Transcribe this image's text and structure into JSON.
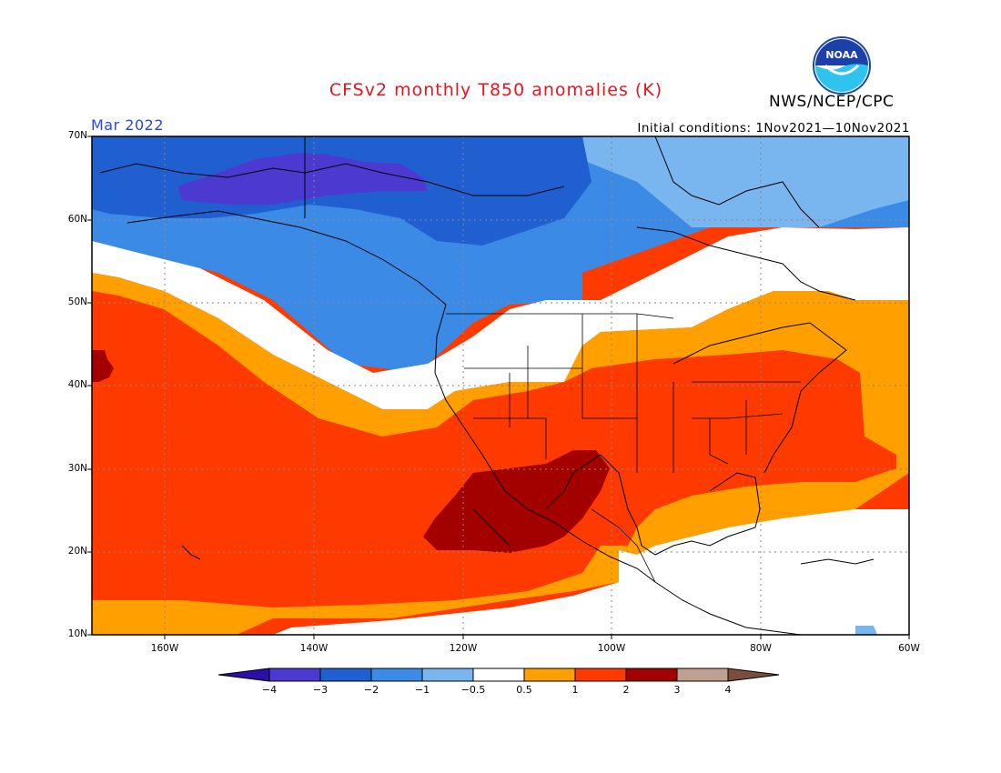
{
  "header": {
    "title": "CFSv2 monthly T850 anomalies (K)",
    "agency": "NWS/NCEP/CPC",
    "valid_month": "Mar 2022",
    "initial_conditions": "Initial conditions: 1Nov2021—10Nov2021",
    "logo_text": "NOAA"
  },
  "map": {
    "lat_labels": [
      "70N",
      "60N",
      "50N",
      "40N",
      "30N",
      "20N",
      "10N"
    ],
    "lon_labels": [
      "160W",
      "140W",
      "120W",
      "100W",
      "80W",
      "60W"
    ]
  },
  "colorbar": {
    "unit": "K",
    "labels": [
      "−4",
      "−3",
      "−2",
      "−1",
      "−0.5",
      "0.5",
      "1",
      "2",
      "3",
      "4"
    ],
    "colors": [
      "#2d0fa6",
      "#4c3ad0",
      "#1f5fd0",
      "#3b8ae6",
      "#79b5ee",
      "#ffffff",
      "#ffa000",
      "#ff3a00",
      "#a30000",
      "#c0a090",
      "#7a4e3c"
    ]
  },
  "anomaly_colors": {
    "neg3": "#4c3ad0",
    "neg2": "#1f5fd0",
    "neg1": "#3b8ae6",
    "neg05": "#79b5ee",
    "zero": "#ffffff",
    "pos05": "#ffa000",
    "pos1": "#ff3a00",
    "pos2": "#a30000"
  }
}
